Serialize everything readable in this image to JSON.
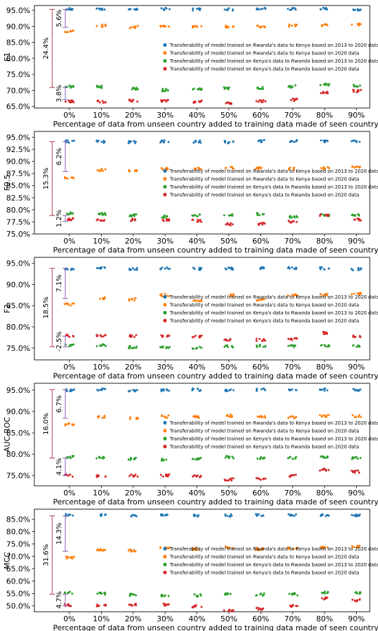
{
  "figure": {
    "x_tick_labels": [
      "0%",
      "10%",
      "20%",
      "30%",
      "40%",
      "50%",
      "60%",
      "70%",
      "80%",
      "90%"
    ],
    "legend_entries": [
      "Transferability of model trained on Rwanda's data to Kenya based on 2013 to 2020 data",
      "Transferability of model trained on Rwanda's data to Kenya based on 2020 data",
      "Transferability of model trained on Kenya's data to Rwanda based on 2013 to 2020 data",
      "Transferability of model trained on Kenya's data to Rwanda based on 2020 data"
    ],
    "series_colors": [
      "#1f77b4",
      "#ff7f0e",
      "#2ca02c",
      "#d62728"
    ],
    "bracket_colors": {
      "outer": "#b5495b",
      "inner": "#9467bd"
    }
  },
  "chart_data": [
    {
      "type": "scatter",
      "xlabel": "Percentage of data from unseen country added to training data made of seen country",
      "ylabel": "F1",
      "categories": [
        "0%",
        "10%",
        "20%",
        "30%",
        "40%",
        "50%",
        "60%",
        "70%",
        "80%",
        "90%"
      ],
      "ylim": [
        64.5,
        96.5
      ],
      "yticks": [
        65.0,
        70.0,
        75.0,
        80.0,
        85.0,
        90.0,
        95.0
      ],
      "ytick_labels": [
        "65.0%",
        "70.0%",
        "75.0%",
        "80.0%",
        "85.0%",
        "90.0%",
        "95.0%"
      ],
      "grid": false,
      "legend_position": "right",
      "series": [
        {
          "values": [
            95.4,
            95.4,
            95.3,
            95.4,
            95.3,
            95.3,
            95.4,
            95.4,
            95.4,
            95.2
          ]
        },
        {
          "values": [
            88.3,
            90.2,
            89.8,
            90.0,
            89.9,
            89.9,
            89.9,
            90.3,
            90.4,
            90.5
          ]
        },
        {
          "values": [
            71.2,
            71.1,
            70.6,
            70.1,
            70.3,
            70.7,
            70.8,
            71.2,
            71.8,
            71.5
          ]
        },
        {
          "values": [
            66.6,
            66.5,
            66.8,
            66.8,
            66.5,
            65.9,
            66.6,
            67.1,
            69.2,
            69.8
          ]
        }
      ],
      "annotations": [
        {
          "text": "24.4%",
          "from": 70.9,
          "to": 95.3,
          "bracket": "outer"
        },
        {
          "text": "5.6%",
          "from": 89.7,
          "to": 95.3,
          "bracket": "inner"
        },
        {
          "text": "3.8%",
          "from": 67.1,
          "to": 70.9,
          "bracket": "inner"
        }
      ]
    },
    {
      "type": "scatter",
      "xlabel": "Percentage of data from unseen country added to training data made of seen country",
      "ylabel": "F0.5",
      "categories": [
        "0%",
        "10%",
        "20%",
        "30%",
        "40%",
        "50%",
        "60%",
        "70%",
        "80%",
        "90%"
      ],
      "ylim": [
        75.0,
        96.2
      ],
      "yticks": [
        75.0,
        77.5,
        80.0,
        82.5,
        85.0,
        87.5,
        90.0,
        92.5,
        95.0
      ],
      "ytick_labels": [
        "75.0%",
        "77.5%",
        "80.0%",
        "82.5%",
        "85.0%",
        "87.5%",
        "90.0%",
        "92.5%",
        "95.0%"
      ],
      "grid": false,
      "legend_position": "right",
      "series": [
        {
          "values": [
            94.1,
            94.1,
            94.0,
            94.1,
            94.1,
            94.0,
            94.2,
            94.2,
            94.2,
            94.1
          ]
        },
        {
          "values": [
            86.5,
            88.2,
            88.0,
            88.5,
            88.5,
            88.7,
            88.6,
            88.5,
            88.6,
            88.8
          ]
        },
        {
          "values": [
            79.3,
            79.1,
            78.9,
            78.6,
            78.8,
            79.0,
            79.1,
            78.6,
            78.9,
            79.0
          ]
        },
        {
          "values": [
            78.1,
            77.8,
            77.9,
            77.9,
            77.7,
            77.0,
            77.1,
            77.5,
            78.9,
            78.0
          ]
        }
      ],
      "annotations": [
        {
          "text": "15.3%",
          "from": 78.8,
          "to": 94.1,
          "bracket": "outer"
        },
        {
          "text": "6.2%",
          "from": 87.9,
          "to": 94.1,
          "bracket": "inner"
        },
        {
          "text": "1.2%",
          "from": 77.6,
          "to": 78.8,
          "bracket": "inner"
        }
      ]
    },
    {
      "type": "scatter",
      "xlabel": "Percentage of data from unseen country added to training data made of seen country",
      "ylabel": "F2",
      "categories": [
        "0%",
        "10%",
        "20%",
        "30%",
        "40%",
        "50%",
        "60%",
        "70%",
        "80%",
        "90%"
      ],
      "ylim": [
        72.2,
        96.4
      ],
      "yticks": [
        75.0,
        80.0,
        85.0,
        90.0,
        95.0
      ],
      "ytick_labels": [
        "75.0%",
        "80.0%",
        "85.0%",
        "90.0%",
        "95.0%"
      ],
      "grid": false,
      "legend_position": "right",
      "series": [
        {
          "values": [
            93.8,
            93.8,
            93.6,
            93.8,
            93.7,
            93.7,
            93.8,
            93.8,
            93.8,
            93.6
          ]
        },
        {
          "values": [
            85.3,
            86.7,
            86.5,
            87.5,
            86.3,
            87.5,
            86.5,
            87.5,
            87.6,
            87.8
          ]
        },
        {
          "values": [
            75.6,
            75.7,
            75.2,
            75.2,
            75.1,
            75.4,
            75.5,
            75.5,
            75.6,
            75.5
          ]
        },
        {
          "values": [
            77.9,
            77.8,
            77.9,
            77.8,
            77.7,
            76.9,
            76.9,
            77.1,
            78.6,
            77.8
          ]
        }
      ],
      "annotations": [
        {
          "text": "18.5%",
          "from": 75.3,
          "to": 93.8,
          "bracket": "outer"
        },
        {
          "text": "7.1%",
          "from": 86.7,
          "to": 93.8,
          "bracket": "inner"
        },
        {
          "text": "-2.5%",
          "from": 75.3,
          "to": 77.8,
          "bracket": "inner"
        }
      ]
    },
    {
      "type": "scatter",
      "xlabel": "Percentage of data from unseen country added to training data made of seen country",
      "ylabel": "AUC-ROC",
      "categories": [
        "0%",
        "10%",
        "20%",
        "30%",
        "40%",
        "50%",
        "60%",
        "70%",
        "80%",
        "90%"
      ],
      "ylim": [
        72.6,
        96.6
      ],
      "yticks": [
        75.0,
        80.0,
        85.0,
        90.0,
        95.0
      ],
      "ytick_labels": [
        "75.0%",
        "80.0%",
        "85.0%",
        "90.0%",
        "95.0%"
      ],
      "grid": false,
      "legend_position": "right",
      "series": [
        {
          "values": [
            95.0,
            95.1,
            94.9,
            95.0,
            95.1,
            95.0,
            95.1,
            95.1,
            95.1,
            95.0
          ]
        },
        {
          "values": [
            87.0,
            88.7,
            88.5,
            88.8,
            88.7,
            89.0,
            88.8,
            88.7,
            88.9,
            88.9
          ]
        },
        {
          "values": [
            79.3,
            79.2,
            78.9,
            78.8,
            79.0,
            79.3,
            79.1,
            79.1,
            79.3,
            79.1
          ]
        },
        {
          "values": [
            75.0,
            74.9,
            75.0,
            75.0,
            74.8,
            74.1,
            74.3,
            74.9,
            76.4,
            75.9
          ]
        }
      ],
      "annotations": [
        {
          "text": "16.0%",
          "from": 79.1,
          "to": 95.1,
          "bracket": "outer"
        },
        {
          "text": "6.7%",
          "from": 88.4,
          "to": 95.1,
          "bracket": "inner"
        },
        {
          "text": "4.1%",
          "from": 75.0,
          "to": 79.1,
          "bracket": "inner"
        }
      ]
    },
    {
      "type": "scatter",
      "xlabel": "Percentage of data from unseen country added to training data made of seen country",
      "ylabel": "MCC",
      "categories": [
        "0%",
        "10%",
        "20%",
        "30%",
        "40%",
        "50%",
        "60%",
        "70%",
        "80%",
        "90%"
      ],
      "ylim": [
        47.6,
        89.0
      ],
      "yticks": [
        50.0,
        55.0,
        60.0,
        65.0,
        70.0,
        75.0,
        80.0,
        85.0
      ],
      "ytick_labels": [
        "50.0%",
        "55.0%",
        "60.0%",
        "65.0%",
        "70.0%",
        "75.0%",
        "80.0%",
        "85.0%"
      ],
      "grid": false,
      "legend_position": "right",
      "series": [
        {
          "values": [
            86.6,
            86.5,
            86.4,
            86.6,
            86.4,
            86.4,
            86.6,
            86.6,
            86.6,
            86.4
          ]
        },
        {
          "values": [
            69.5,
            72.5,
            72.3,
            73.4,
            72.9,
            73.5,
            72.9,
            73.5,
            73.7,
            73.9
          ]
        },
        {
          "values": [
            55.3,
            55.0,
            54.4,
            54.0,
            54.2,
            54.7,
            54.6,
            54.7,
            55.4,
            55.1
          ]
        },
        {
          "values": [
            50.3,
            50.0,
            50.4,
            50.4,
            49.8,
            48.1,
            48.8,
            50.0,
            53.0,
            52.2
          ]
        }
      ],
      "annotations": [
        {
          "text": "31.6%",
          "from": 54.7,
          "to": 86.3,
          "bracket": "outer"
        },
        {
          "text": "14.3%",
          "from": 72.0,
          "to": 86.3,
          "bracket": "inner"
        },
        {
          "text": "4.7%",
          "from": 50.0,
          "to": 54.7,
          "bracket": "inner"
        }
      ]
    }
  ]
}
